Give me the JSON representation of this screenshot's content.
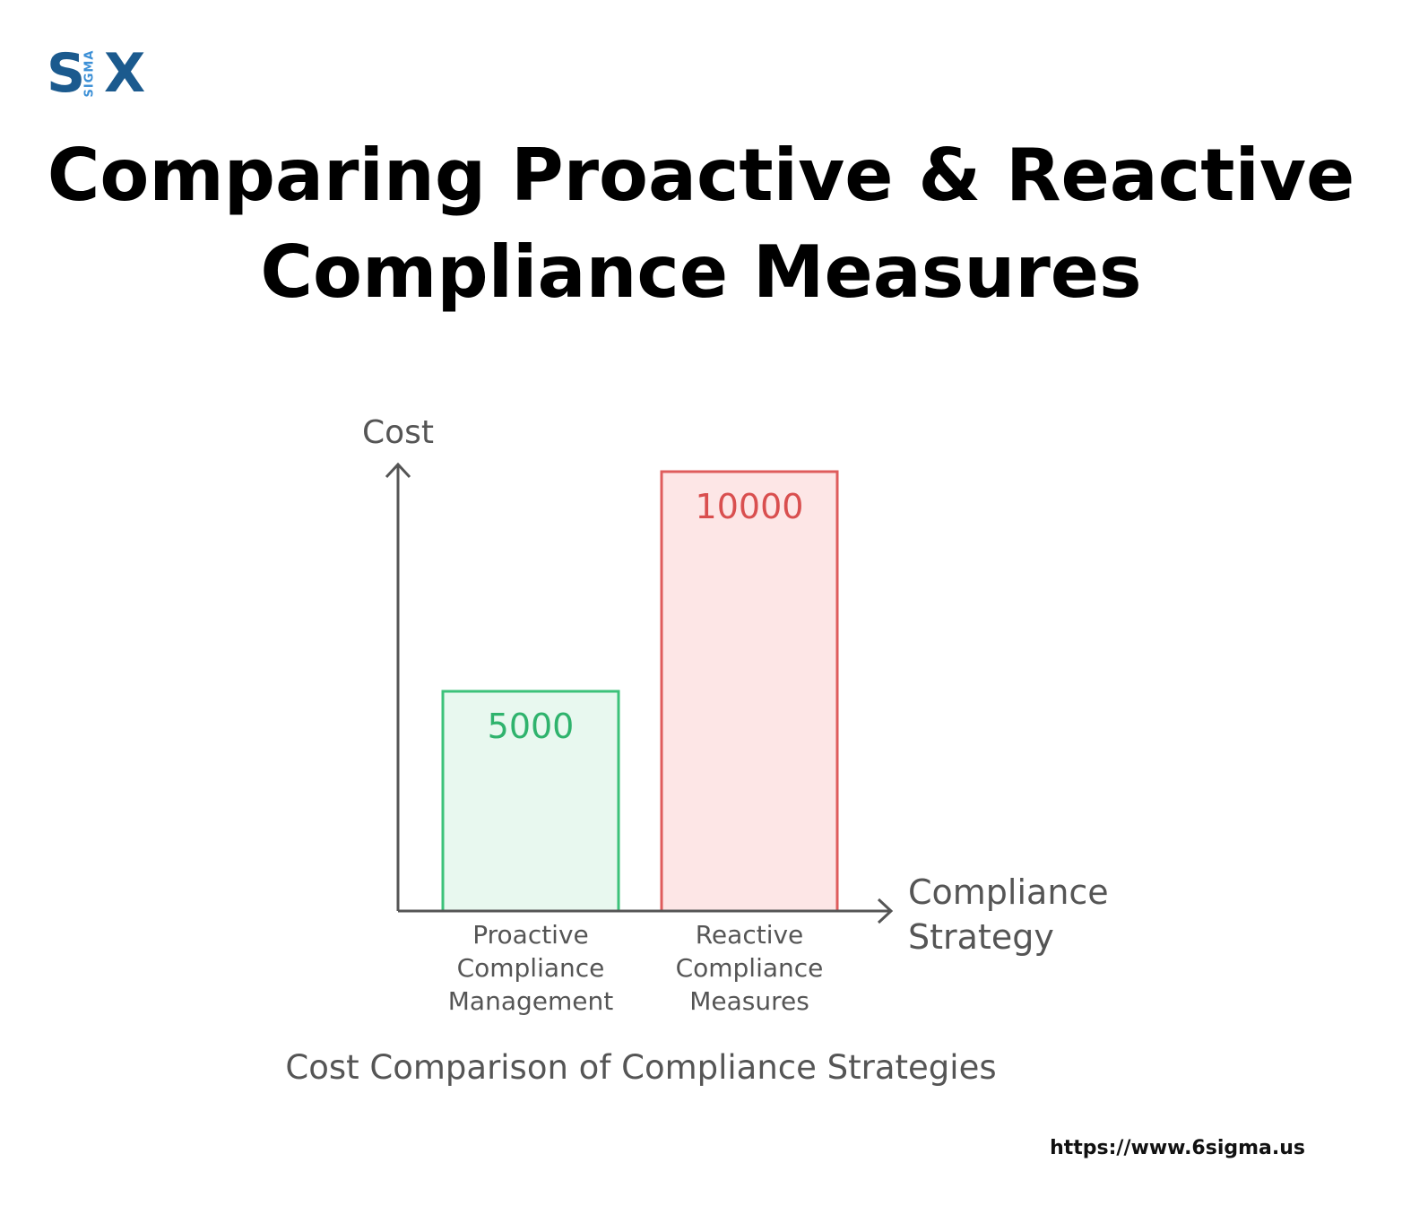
{
  "logo": {
    "letter_s": "S",
    "sigma": "SIGMA",
    "letter_x": "X"
  },
  "header": {
    "title": "Comparing Proactive & Reactive Compliance Measures"
  },
  "chart_data": {
    "type": "bar",
    "title": "Cost Comparison of Compliance Strategies",
    "ylabel": "Cost",
    "xlabel": [
      "Compliance",
      "Strategy"
    ],
    "categories": [
      [
        "Proactive",
        "Compliance",
        "Management"
      ],
      [
        "Reactive",
        "Compliance",
        "Measures"
      ]
    ],
    "values": [
      5000,
      10000
    ],
    "colors": {
      "proactive_fill": "#e8f8ef",
      "proactive_stroke": "#3cc27a",
      "proactive_text": "#2fb36d",
      "reactive_fill": "#fde6e6",
      "reactive_stroke": "#df5c5c",
      "reactive_text": "#d94f4f",
      "axis": "#555555",
      "label": "#555555"
    },
    "grid": false,
    "legend": "none"
  },
  "footer": {
    "url": "https://www.6sigma.us"
  }
}
